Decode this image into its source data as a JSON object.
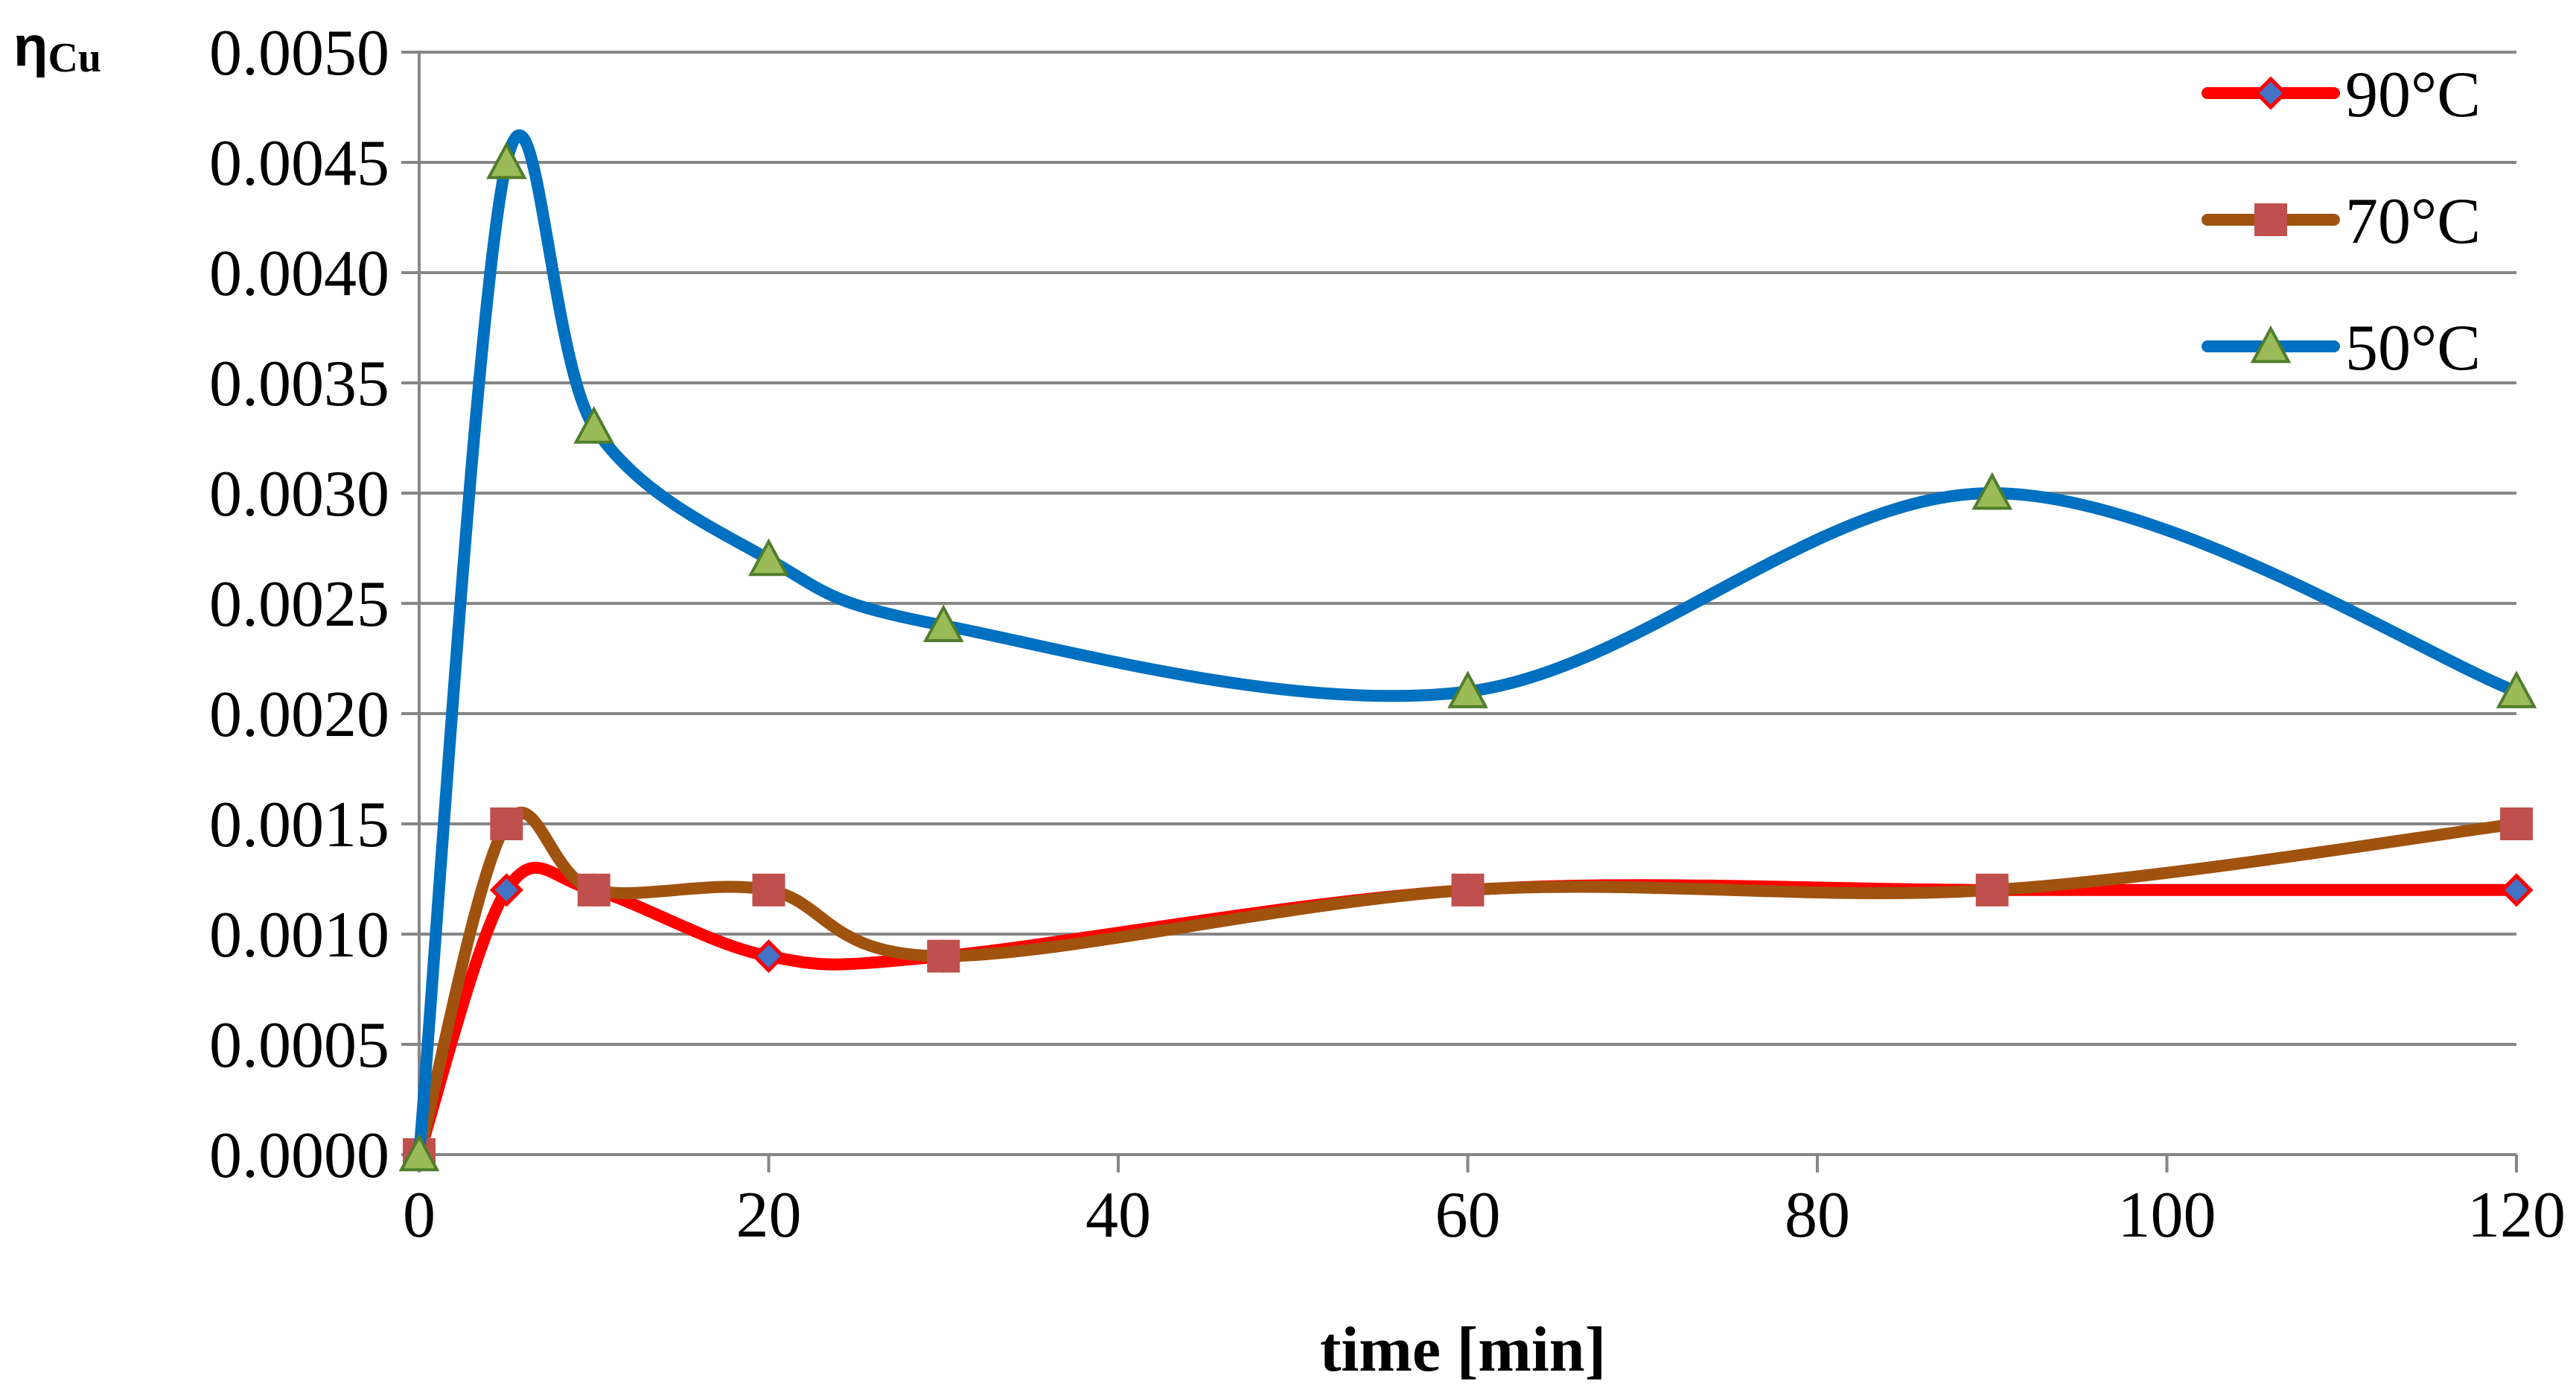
{
  "chart_data": {
    "type": "line",
    "title": "",
    "xlabel": "time [min]",
    "ylabel_symbol": "η",
    "ylabel_subscript": "Cu",
    "xlim": [
      0,
      120
    ],
    "ylim": [
      0,
      0.005
    ],
    "x_ticks": [
      0,
      20,
      40,
      60,
      80,
      100,
      120
    ],
    "x_tick_labels": [
      "0",
      "20",
      "40",
      "60",
      "80",
      "100",
      "120"
    ],
    "y_ticks": [
      0,
      0.0005,
      0.001,
      0.0015,
      0.002,
      0.0025,
      0.003,
      0.0035,
      0.004,
      0.0045,
      0.005
    ],
    "y_tick_labels": [
      "0.0000",
      "0.0005",
      "0.0010",
      "0.0015",
      "0.0020",
      "0.0025",
      "0.0030",
      "0.0035",
      "0.0040",
      "0.0045",
      "0.0050"
    ],
    "grid": "horizontal",
    "legend_position": "top-right",
    "series": [
      {
        "name": "90°C",
        "color": "#ff0000",
        "marker": "diamond",
        "marker_fill": "#4472c4",
        "x": [
          0,
          5,
          10,
          20,
          30,
          60,
          90,
          120
        ],
        "values": [
          0,
          0.0012,
          0.0012,
          0.0009,
          0.0009,
          0.0012,
          0.0012,
          0.0012
        ]
      },
      {
        "name": "70°C",
        "color": "#a0520f",
        "marker": "square",
        "marker_fill": "#c0504d",
        "x": [
          0,
          5,
          10,
          20,
          30,
          60,
          90,
          120
        ],
        "values": [
          0,
          0.0015,
          0.0012,
          0.0012,
          0.0009,
          0.0012,
          0.0012,
          0.0015
        ]
      },
      {
        "name": "50°C",
        "color": "#0070c0",
        "marker": "triangle",
        "marker_fill": "#9bbb59",
        "x": [
          0,
          5,
          10,
          20,
          30,
          60,
          90,
          120
        ],
        "values": [
          0,
          0.0045,
          0.0033,
          0.0027,
          0.0024,
          0.0021,
          0.003,
          0.0021
        ]
      }
    ]
  }
}
